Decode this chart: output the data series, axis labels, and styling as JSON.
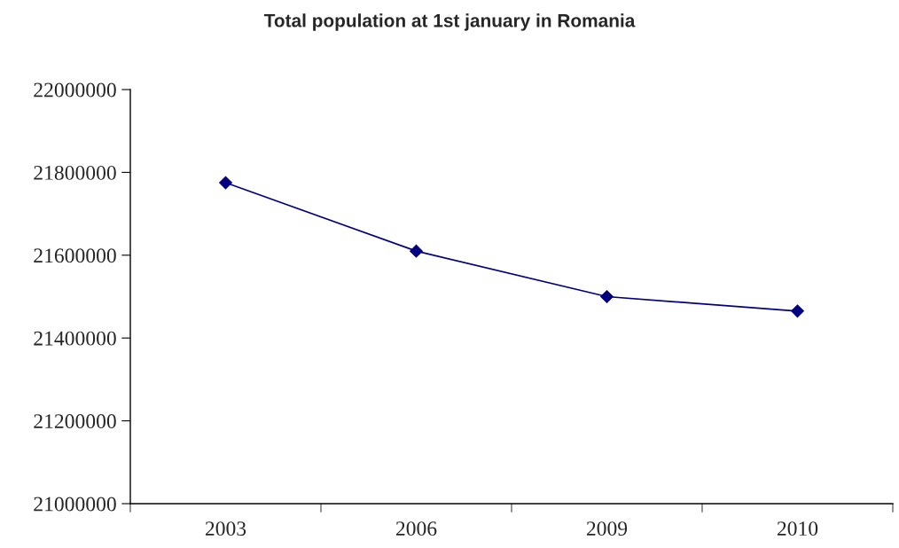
{
  "chart_data": {
    "type": "line",
    "title": "Total population at 1st january in Romania",
    "categories": [
      "2003",
      "2006",
      "2009",
      "2010"
    ],
    "series": [
      {
        "color": "#000080",
        "values": [
          21775000,
          21610000,
          21500000,
          21465000
        ]
      }
    ],
    "ylim": [
      21000000,
      22000000
    ],
    "yticks": [
      21000000,
      21200000,
      21400000,
      21600000,
      21800000,
      22000000
    ],
    "marker": "diamond",
    "line_style": "solid",
    "grid": false,
    "legend": false
  }
}
